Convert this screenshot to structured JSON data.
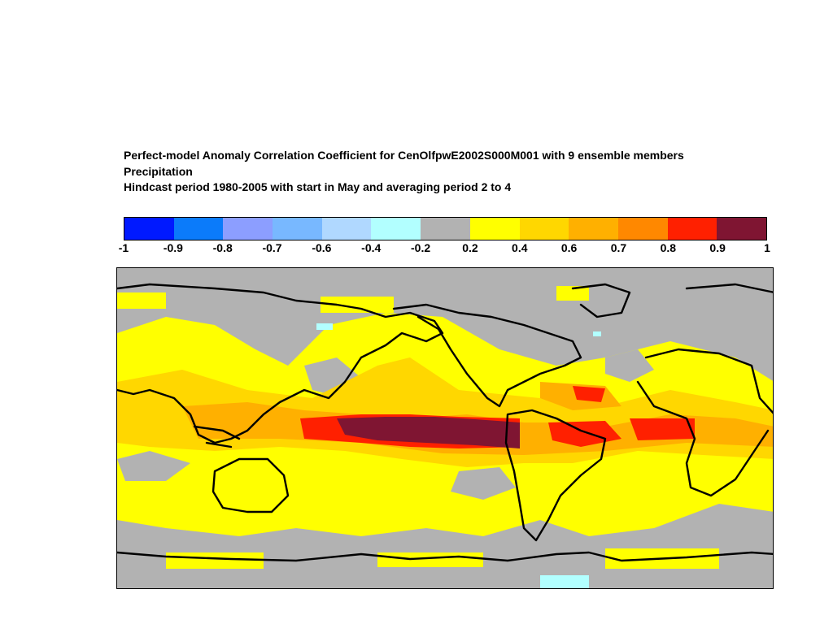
{
  "title": {
    "line1": "Perfect-model Anomaly Correlation Coefficient for CenOlfpwE2002S000M001 with  9 ensemble members",
    "line2": "Precipitation",
    "line3": "Hindcast period 1980-2005 with start in May and averaging period 2 to 4"
  },
  "colorbar": {
    "colors": [
      "#0019ff",
      "#0b7bfa",
      "#8c9eff",
      "#78b8ff",
      "#b0d8ff",
      "#b2ffff",
      "#b2b2b2",
      "#ffff00",
      "#ffd700",
      "#ffb000",
      "#ff8800",
      "#ff2000",
      "#7f1532"
    ],
    "labels": [
      "-1",
      "-0.9",
      "-0.8",
      "-0.7",
      "-0.6",
      "-0.4",
      "-0.2",
      "0.2",
      "0.4",
      "0.6",
      "0.7",
      "0.8",
      "0.9",
      "1"
    ]
  },
  "map": {
    "background_color": "#b2b2b2",
    "coastline_color": "#000000",
    "fill_colors": {
      "yellow": "#ffff00",
      "gold": "#ffd700",
      "orange": "#ffb000",
      "dark_orange": "#ff8800",
      "red": "#ff2000",
      "dark_red": "#7f1532",
      "light_cyan": "#b2ffff"
    }
  }
}
